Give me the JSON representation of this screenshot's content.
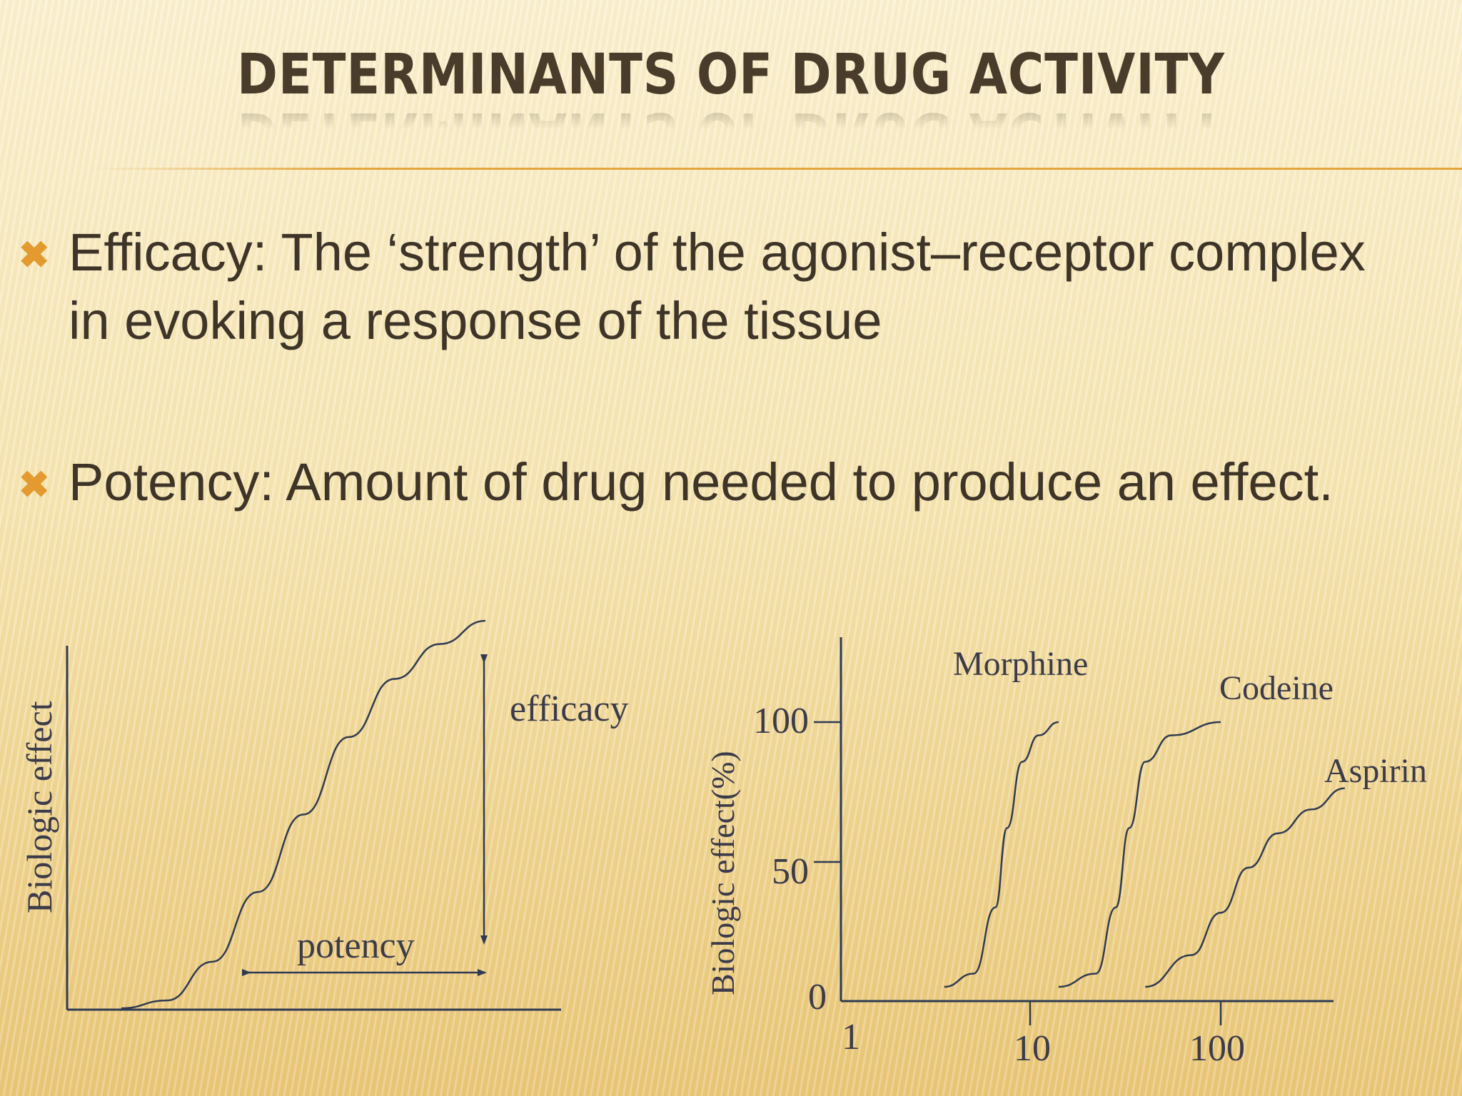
{
  "slide": {
    "title": "DETERMINANTS OF DRUG ACTIVITY",
    "bullets": [
      {
        "marker_icon": "x-mark-icon",
        "text": "Efficacy: The ‘strength’ of the agonist–receptor complex in evoking a response of the tissue"
      },
      {
        "marker_icon": "x-mark-icon",
        "text": "Potency:  Amount of drug needed to produce an effect."
      }
    ],
    "colors": {
      "title": "#4a3c2a",
      "accent": "#e49a2f",
      "figure_ink": "#2f3b52"
    }
  },
  "chart_data": [
    {
      "type": "line",
      "title": "",
      "ylabel": "Biologic effect",
      "xlabel": "",
      "annotations": [
        "efficacy",
        "potency"
      ],
      "series": [
        {
          "values": [
            0,
            0.02,
            0.12,
            0.3,
            0.5,
            0.7,
            0.85,
            0.94,
            1.0
          ]
        }
      ]
    },
    {
      "type": "line",
      "title": "",
      "ylabel": "Biologic effect(%)",
      "xlabel": "",
      "x_scale": "log",
      "xlim": [
        1,
        500
      ],
      "ylim": [
        0,
        125
      ],
      "x_ticks": [
        "1",
        "10",
        "100"
      ],
      "y_ticks": [
        "0",
        "50",
        "100"
      ],
      "series": [
        {
          "name": "Morphine",
          "x": [
            3.5,
            5,
            6.5,
            7.5,
            9,
            11,
            14
          ],
          "y": [
            0,
            5,
            30,
            60,
            85,
            95,
            100
          ]
        },
        {
          "name": "Codeine",
          "x": [
            14,
            22,
            28,
            33,
            40,
            55,
            100
          ],
          "y": [
            0,
            5,
            30,
            60,
            85,
            95,
            100
          ]
        },
        {
          "name": "Aspirin",
          "x": [
            40,
            70,
            100,
            140,
            200,
            300,
            450
          ],
          "y": [
            0,
            12,
            28,
            45,
            58,
            67,
            75
          ]
        }
      ]
    }
  ]
}
